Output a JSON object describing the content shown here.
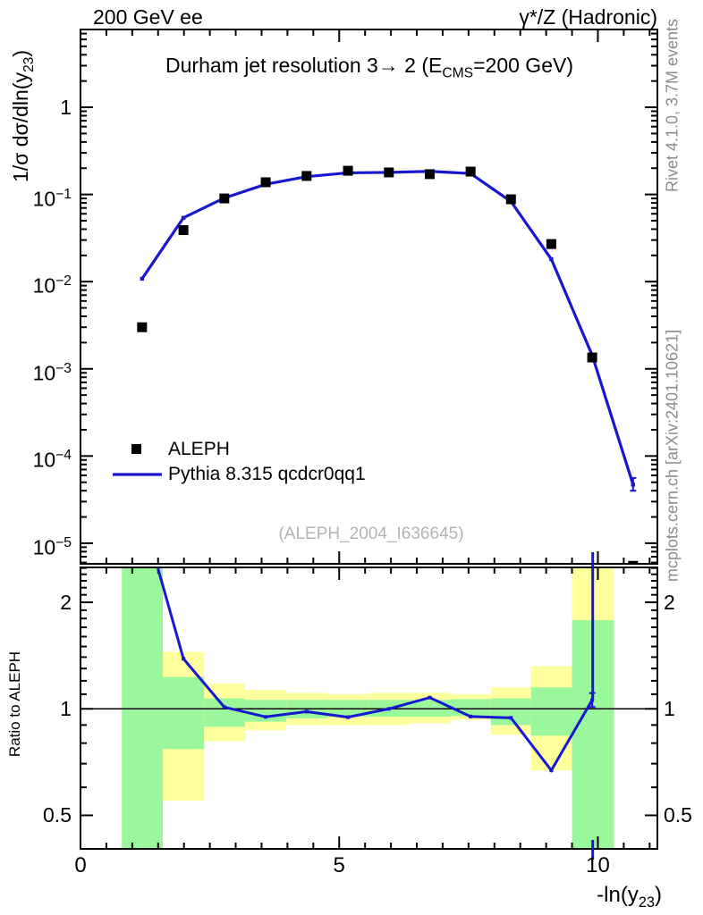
{
  "header": {
    "left": "200 GeV ee",
    "right": "γ*/Z (Hadronic)"
  },
  "title_segments": [
    {
      "t": "Durham jet resolution 3→ 2 (E"
    },
    {
      "t": "CMS",
      "sub": true
    },
    {
      "t": "=200 GeV)"
    }
  ],
  "legend": {
    "items": [
      {
        "label": "ALEPH",
        "marker": "black-square"
      },
      {
        "label": "Pythia 8.315 qcdcr0qq1",
        "marker": "blue-line"
      }
    ]
  },
  "watermark": "(ALEPH_2004_I636645)",
  "side_notes": {
    "top": "Rivet 4.1.0,  3.7M events",
    "bottom": "mcplots.cern.ch [arXiv:2401.10621]"
  },
  "axes": {
    "x_label_segments": [
      {
        "t": "-ln(y"
      },
      {
        "t": "23",
        "sub": true
      },
      {
        "t": ")"
      }
    ],
    "y_label_segments": [
      {
        "t": "1/σ  dσ/dln(y"
      },
      {
        "t": "23",
        "sub": true
      },
      {
        "t": ")"
      }
    ],
    "ratio_label": "Ratio to ALEPH",
    "x_major_ticks": [
      0,
      5,
      10
    ],
    "y_tick_exponents": [
      0,
      -1,
      -2,
      -3,
      -4,
      -5
    ],
    "ratio_tick_labels": [
      "2",
      "1",
      "0.5"
    ],
    "ratio_tick_values": [
      2,
      1,
      0.5
    ]
  },
  "chart_data": {
    "type": "line",
    "title": "Durham jet resolution 3 → 2 (E_CMS = 200 GeV)",
    "xlabel": "-ln(y_23)",
    "ylabel": "1/σ dσ/dln(y_23)",
    "ratio_ylabel": "Ratio to ALEPH",
    "x_range": [
      0,
      11.15
    ],
    "y_range_main": [
      5.8e-06,
      7.8
    ],
    "y_range_ratio": [
      0.402,
      2.51
    ],
    "x": [
      1.19,
      1.99,
      2.78,
      3.58,
      4.37,
      5.17,
      5.96,
      6.75,
      7.54,
      8.32,
      9.1,
      9.89,
      10.68
    ],
    "series": [
      {
        "name": "ALEPH",
        "type": "scatter",
        "marker": "square",
        "color": "#000000",
        "values": [
          0.003,
          0.039,
          0.09,
          0.138,
          0.163,
          0.187,
          0.179,
          0.171,
          0.183,
          0.088,
          0.027,
          0.00135,
          5.5e-06
        ]
      },
      {
        "name": "Pythia 8.315 qcdcr0qq1",
        "type": "line",
        "color": "#1717d0",
        "values": [
          0.0108,
          0.054,
          0.091,
          0.131,
          0.16,
          0.177,
          0.179,
          0.184,
          0.174,
          0.083,
          0.0181,
          0.00143,
          4.7e-05
        ],
        "end_error": [
          4e-05,
          5.6e-05
        ]
      }
    ],
    "ratio": {
      "values": [
        3.6,
        1.385,
        1.011,
        0.949,
        0.982,
        0.947,
        1.0,
        1.076,
        0.951,
        0.943,
        0.67,
        1.059,
        null
      ],
      "marker": {
        "x": 9.89,
        "r": 1.059,
        "err": [
          1.012,
          1.108
        ]
      },
      "offscale_connector_x": 9.9
    },
    "bands": [
      {
        "x0": 0.8,
        "x1": 1.59,
        "yellow": null,
        "green": [
          0.35,
          2.6
        ]
      },
      {
        "x0": 1.59,
        "x1": 2.39,
        "yellow": [
          0.55,
          1.45
        ],
        "green": [
          0.77,
          1.23
        ]
      },
      {
        "x0": 2.39,
        "x1": 3.18,
        "yellow": [
          0.81,
          1.18
        ],
        "green": [
          0.89,
          1.07
        ]
      },
      {
        "x0": 3.18,
        "x1": 3.98,
        "yellow": [
          0.87,
          1.13
        ],
        "green": [
          0.92,
          1.06
        ]
      },
      {
        "x0": 3.98,
        "x1": 4.77,
        "yellow": [
          0.9,
          1.11
        ],
        "green": [
          0.94,
          1.06
        ]
      },
      {
        "x0": 4.77,
        "x1": 5.57,
        "yellow": [
          0.9,
          1.1
        ],
        "green": [
          0.95,
          1.06
        ]
      },
      {
        "x0": 5.57,
        "x1": 6.36,
        "yellow": [
          0.9,
          1.11
        ],
        "green": [
          0.95,
          1.06
        ]
      },
      {
        "x0": 6.36,
        "x1": 7.15,
        "yellow": [
          0.91,
          1.11
        ],
        "green": [
          0.95,
          1.06
        ]
      },
      {
        "x0": 7.15,
        "x1": 7.93,
        "yellow": [
          0.93,
          1.1
        ],
        "green": [
          0.955,
          1.065
        ]
      },
      {
        "x0": 7.93,
        "x1": 8.71,
        "yellow": [
          0.845,
          1.15
        ],
        "green": [
          0.9,
          1.07
        ]
      },
      {
        "x0": 8.71,
        "x1": 9.5,
        "yellow": [
          0.67,
          1.32
        ],
        "green": [
          0.84,
          1.15
        ]
      },
      {
        "x0": 9.5,
        "x1": 10.31,
        "yellow": [
          0.35,
          2.6
        ],
        "green": [
          0.35,
          1.78
        ]
      }
    ],
    "colors": {
      "band_green": "#9bf79b",
      "band_yellow": "#ffff9e",
      "line_blue": "#1717d0",
      "axis": "#000000"
    }
  }
}
